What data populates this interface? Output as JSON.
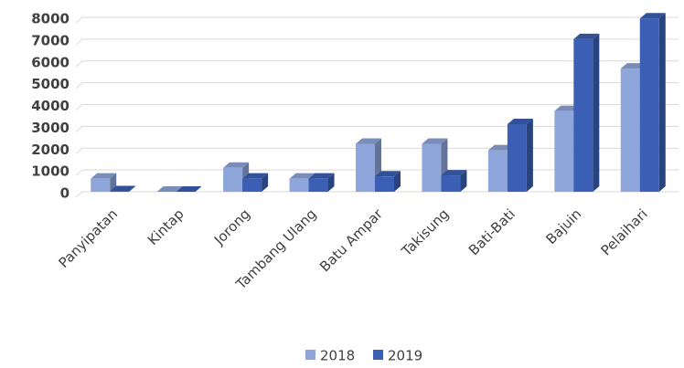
{
  "chart_data": {
    "type": "bar3d",
    "categories": [
      "Panyipatan",
      "Kintap",
      "Jorong",
      "Tambang Ulang",
      "Batu Ampar",
      "Takisung",
      "Bati-Bati",
      "Bajuin",
      "Pelaihari"
    ],
    "series": [
      {
        "name": "2018",
        "color": "#8fa6da",
        "values": [
          600,
          0,
          1100,
          600,
          2200,
          2200,
          1900,
          3700,
          5650
        ]
      },
      {
        "name": "2019",
        "color": "#3a5fb4",
        "values": [
          20,
          0,
          600,
          600,
          700,
          750,
          3100,
          7000,
          7950
        ]
      }
    ],
    "ylim": [
      0,
      8000
    ],
    "yticks": [
      0,
      1000,
      2000,
      3000,
      4000,
      5000,
      6000,
      7000,
      8000
    ],
    "grid": true,
    "legend": "bottom"
  }
}
